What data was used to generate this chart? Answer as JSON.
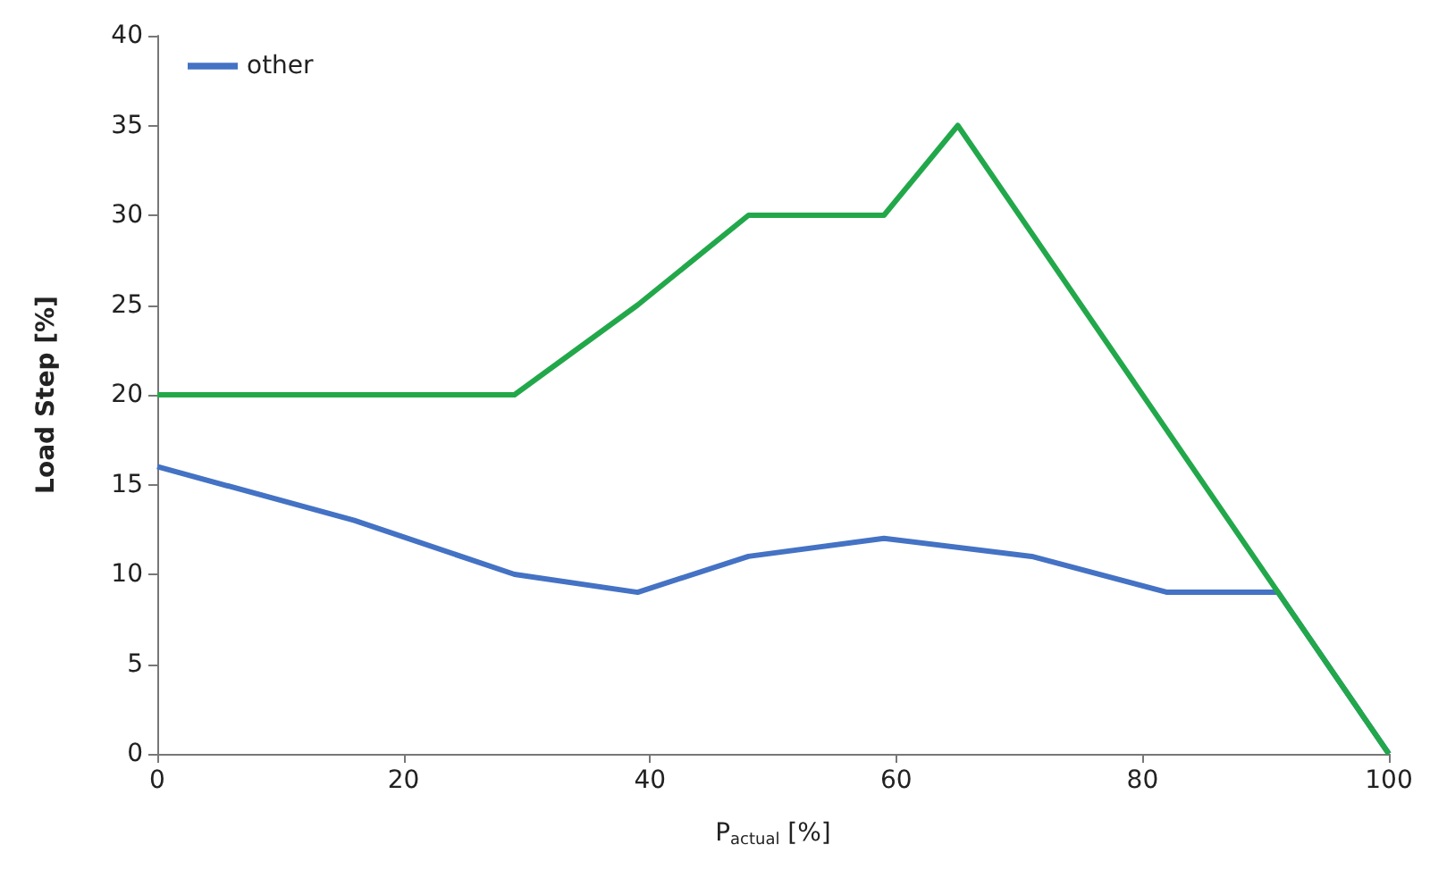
{
  "chart_data": {
    "type": "line",
    "xlabel": "P$_{actual}$ [%]",
    "ylabel": "Load Step [%]",
    "xlim": [
      0,
      100
    ],
    "xticks": [
      0,
      20,
      40,
      60,
      80,
      100
    ],
    "ylim": [
      0,
      40
    ],
    "yticks": [
      0,
      5,
      10,
      15,
      20,
      25,
      30,
      35,
      40
    ],
    "grid": false,
    "legend": "top left",
    "marker": "none",
    "series": [
      {
        "name": "other",
        "color": "#4472c4",
        "x": [
          0,
          16,
          29,
          39,
          48,
          59,
          71,
          82,
          91,
          100
        ],
        "values": [
          16,
          13,
          10,
          9,
          11,
          12,
          11,
          9,
          9,
          0
        ]
      },
      {
        "color": "#22a84a",
        "x": [
          0,
          29,
          39,
          48,
          59,
          65,
          100
        ],
        "values": [
          20,
          20,
          25,
          30,
          30,
          35,
          0
        ]
      }
    ]
  }
}
